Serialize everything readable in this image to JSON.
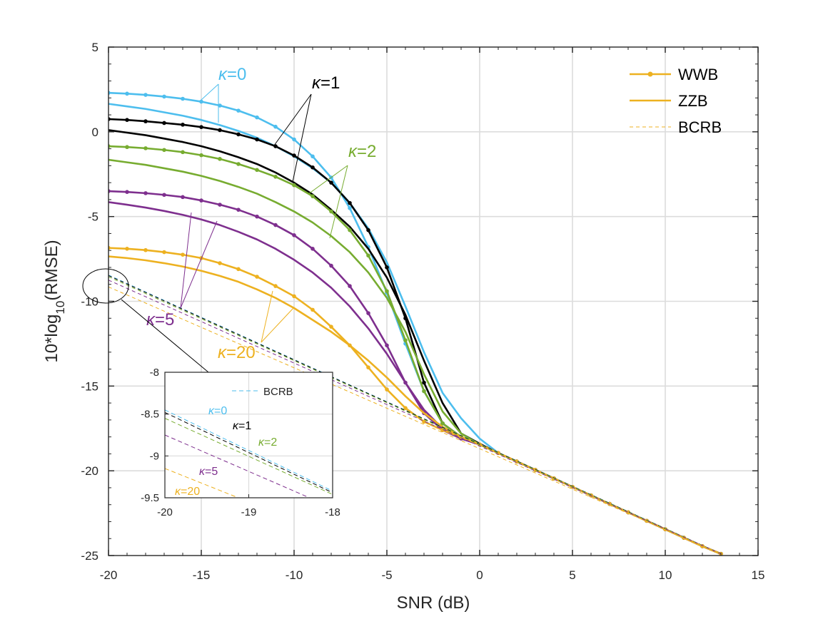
{
  "chart_data": [
    {
      "type": "line",
      "xlabel": "SNR (dB)",
      "ylabel_main": "10*log",
      "ylabel_sub": "10",
      "ylabel_tail": "(RMSE)",
      "xlim": [
        -20,
        15
      ],
      "ylim": [
        -25,
        5
      ],
      "xticks": [
        "-20",
        "-15",
        "-10",
        "-5",
        "0",
        "5",
        "10",
        "15"
      ],
      "yticks": [
        "5",
        "0",
        "-5",
        "-10",
        "-15",
        "-20",
        "-25"
      ],
      "grid": true,
      "legend_position": "top-right",
      "legend": [
        {
          "label": "WWB",
          "style": "line-with-dots"
        },
        {
          "label": "ZZB",
          "style": "solid"
        },
        {
          "label": "BCRB",
          "style": "dashed"
        }
      ],
      "colors": {
        "k0": "#4DBEEE",
        "k1": "#000000",
        "k2": "#77AC30",
        "k5": "#7E2F8E",
        "k20": "#EDB120"
      },
      "annotations": [
        {
          "id": "k0",
          "prefix": "κ",
          "text": "=0"
        },
        {
          "id": "k1",
          "prefix": "κ",
          "text": "=1"
        },
        {
          "id": "k2",
          "prefix": "κ",
          "text": "=2"
        },
        {
          "id": "k5",
          "prefix": "κ",
          "text": "=5"
        },
        {
          "id": "k20",
          "prefix": "κ",
          "text": "=20"
        }
      ],
      "series": [
        {
          "kappa": "k0",
          "kind": "WWB",
          "x": [
            -20,
            -19,
            -18,
            -17,
            -16,
            -15,
            -14,
            -13,
            -12,
            -11,
            -10,
            -9,
            -8,
            -7,
            -6,
            -5,
            -4,
            -3,
            -2,
            -1,
            0,
            1,
            2,
            3,
            4,
            5,
            6,
            7,
            8,
            9,
            10,
            11,
            12,
            13
          ],
          "y": [
            2.3,
            2.25,
            2.18,
            2.08,
            1.95,
            1.78,
            1.55,
            1.25,
            0.85,
            0.3,
            -0.45,
            -1.45,
            -2.7,
            -4.5,
            -6.8,
            -9.5,
            -12.5,
            -15.3,
            -17.2,
            -18.05,
            -18.45,
            -18.95,
            -19.45,
            -19.95,
            -20.45,
            -20.95,
            -21.45,
            -21.95,
            -22.45,
            -22.95,
            -23.45,
            -23.95,
            -24.45,
            -24.9
          ]
        },
        {
          "kappa": "k0",
          "kind": "ZZB",
          "x": [
            -20,
            -19,
            -18,
            -17,
            -16,
            -15,
            -14,
            -13,
            -12,
            -11,
            -10,
            -9,
            -8,
            -7,
            -6,
            -5,
            -4,
            -3,
            -2,
            -1,
            0,
            1,
            2,
            3,
            4,
            5,
            6,
            7,
            8,
            9,
            10,
            11,
            12,
            13
          ],
          "y": [
            1.65,
            1.5,
            1.35,
            1.15,
            0.95,
            0.7,
            0.4,
            0.05,
            -0.35,
            -0.85,
            -1.45,
            -2.15,
            -3.0,
            -4.2,
            -5.7,
            -7.7,
            -10.3,
            -13.0,
            -15.4,
            -16.9,
            -18.1,
            -18.95,
            -19.45,
            -19.95,
            -20.45,
            -20.95,
            -21.45,
            -21.95,
            -22.45,
            -22.95,
            -23.45,
            -23.95,
            -24.45,
            -24.9
          ]
        },
        {
          "kappa": "k1",
          "kind": "WWB",
          "x": [
            -20,
            -19,
            -18,
            -17,
            -16,
            -15,
            -14,
            -13,
            -12,
            -11,
            -10,
            -9,
            -8,
            -7,
            -6,
            -5,
            -4,
            -3,
            -2,
            -1,
            0,
            1,
            2,
            3,
            4,
            5,
            6,
            7,
            8,
            9,
            10,
            11,
            12,
            13
          ],
          "y": [
            0.75,
            0.7,
            0.62,
            0.52,
            0.42,
            0.28,
            0.1,
            -0.15,
            -0.45,
            -0.85,
            -1.4,
            -2.1,
            -3.0,
            -4.2,
            -5.8,
            -8.0,
            -11.0,
            -14.8,
            -17.2,
            -18.0,
            -18.45,
            -18.95,
            -19.45,
            -19.95,
            -20.45,
            -20.95,
            -21.45,
            -21.95,
            -22.45,
            -22.95,
            -23.45,
            -23.95,
            -24.45,
            -24.9
          ]
        },
        {
          "kappa": "k1",
          "kind": "ZZB",
          "x": [
            -20,
            -19,
            -18,
            -17,
            -16,
            -15,
            -14,
            -13,
            -12,
            -11,
            -10,
            -9,
            -8,
            -7,
            -6,
            -5,
            -4,
            -3,
            -2,
            -1,
            0,
            1,
            2,
            3,
            4,
            5,
            6,
            7,
            8,
            9,
            10,
            11,
            12,
            13
          ],
          "y": [
            0.1,
            -0.05,
            -0.2,
            -0.4,
            -0.6,
            -0.85,
            -1.15,
            -1.5,
            -1.9,
            -2.4,
            -3.0,
            -3.7,
            -4.6,
            -5.6,
            -6.9,
            -8.6,
            -10.8,
            -13.5,
            -16.0,
            -17.8,
            -18.4,
            -18.95,
            -19.45,
            -19.95,
            -20.45,
            -20.95,
            -21.45,
            -21.95,
            -22.45,
            -22.95,
            -23.45,
            -23.95,
            -24.45,
            -24.9
          ]
        },
        {
          "kappa": "k2",
          "kind": "WWB",
          "x": [
            -20,
            -19,
            -18,
            -17,
            -16,
            -15,
            -14,
            -13,
            -12,
            -11,
            -10,
            -9,
            -8,
            -7,
            -6,
            -5,
            -4,
            -3,
            -2,
            -1,
            0,
            1,
            2,
            3,
            4,
            5,
            6,
            7,
            8,
            9,
            10,
            11,
            12,
            13
          ],
          "y": [
            -0.85,
            -0.9,
            -0.97,
            -1.07,
            -1.2,
            -1.38,
            -1.6,
            -1.9,
            -2.25,
            -2.65,
            -3.15,
            -3.8,
            -4.7,
            -5.8,
            -7.3,
            -9.4,
            -12.3,
            -15.3,
            -17.2,
            -18.0,
            -18.45,
            -18.95,
            -19.45,
            -19.95,
            -20.45,
            -20.95,
            -21.45,
            -21.95,
            -22.45,
            -22.95,
            -23.45,
            -23.95,
            -24.45,
            -24.9
          ]
        },
        {
          "kappa": "k2",
          "kind": "ZZB",
          "x": [
            -20,
            -19,
            -18,
            -17,
            -16,
            -15,
            -14,
            -13,
            -12,
            -11,
            -10,
            -9,
            -8,
            -7,
            -6,
            -5,
            -4,
            -3,
            -2,
            -1,
            0,
            1,
            2,
            3,
            4,
            5,
            6,
            7,
            8,
            9,
            10,
            11,
            12,
            13
          ],
          "y": [
            -1.65,
            -1.8,
            -1.95,
            -2.15,
            -2.35,
            -2.6,
            -2.9,
            -3.25,
            -3.65,
            -4.15,
            -4.7,
            -5.35,
            -6.15,
            -7.1,
            -8.3,
            -9.8,
            -11.8,
            -14.3,
            -16.5,
            -17.8,
            -18.45,
            -18.95,
            -19.45,
            -19.95,
            -20.45,
            -20.95,
            -21.45,
            -21.95,
            -22.45,
            -22.95,
            -23.45,
            -23.95,
            -24.45,
            -24.9
          ]
        },
        {
          "kappa": "k5",
          "kind": "WWB",
          "x": [
            -20,
            -19,
            -18,
            -17,
            -16,
            -15,
            -14,
            -13,
            -12,
            -11,
            -10,
            -9,
            -8,
            -7,
            -6,
            -5,
            -4,
            -3,
            -2,
            -1,
            0,
            1,
            2,
            3,
            4,
            5,
            6,
            7,
            8,
            9,
            10,
            11,
            12,
            13
          ],
          "y": [
            -3.5,
            -3.55,
            -3.62,
            -3.72,
            -3.85,
            -4.05,
            -4.3,
            -4.6,
            -5.0,
            -5.5,
            -6.1,
            -6.9,
            -7.9,
            -9.1,
            -10.7,
            -12.6,
            -14.8,
            -16.6,
            -17.6,
            -18.1,
            -18.45,
            -18.95,
            -19.45,
            -19.95,
            -20.45,
            -20.95,
            -21.45,
            -21.95,
            -22.45,
            -22.95,
            -23.45,
            -23.95,
            -24.45,
            -24.9
          ]
        },
        {
          "kappa": "k5",
          "kind": "ZZB",
          "x": [
            -20,
            -19,
            -18,
            -17,
            -16,
            -15,
            -14,
            -13,
            -12,
            -11,
            -10,
            -9,
            -8,
            -7,
            -6,
            -5,
            -4,
            -3,
            -2,
            -1,
            0,
            1,
            2,
            3,
            4,
            5,
            6,
            7,
            8,
            9,
            10,
            11,
            12,
            13
          ],
          "y": [
            -4.15,
            -4.3,
            -4.47,
            -4.67,
            -4.9,
            -5.17,
            -5.5,
            -5.9,
            -6.35,
            -6.9,
            -7.55,
            -8.3,
            -9.2,
            -10.3,
            -11.6,
            -13.1,
            -14.8,
            -16.4,
            -17.5,
            -18.1,
            -18.45,
            -18.95,
            -19.45,
            -19.95,
            -20.45,
            -20.95,
            -21.45,
            -21.95,
            -22.45,
            -22.95,
            -23.45,
            -23.95,
            -24.45,
            -24.9
          ]
        },
        {
          "kappa": "k20",
          "kind": "WWB",
          "x": [
            -20,
            -19,
            -18,
            -17,
            -16,
            -15,
            -14,
            -13,
            -12,
            -11,
            -10,
            -9,
            -8,
            -7,
            -6,
            -5,
            -4,
            -3,
            -2,
            -1,
            0,
            1,
            2,
            3,
            4,
            5,
            6,
            7,
            8,
            9,
            10,
            11,
            12,
            13
          ],
          "y": [
            -6.85,
            -6.9,
            -6.98,
            -7.1,
            -7.25,
            -7.45,
            -7.75,
            -8.1,
            -8.55,
            -9.1,
            -9.7,
            -10.5,
            -11.5,
            -12.6,
            -13.9,
            -15.2,
            -16.3,
            -17.1,
            -17.6,
            -18.0,
            -18.45,
            -18.95,
            -19.45,
            -19.95,
            -20.45,
            -20.95,
            -21.45,
            -21.95,
            -22.45,
            -22.95,
            -23.45,
            -23.95,
            -24.45,
            -24.9
          ]
        },
        {
          "kappa": "k20",
          "kind": "ZZB",
          "x": [
            -20,
            -19,
            -18,
            -17,
            -16,
            -15,
            -14,
            -13,
            -12,
            -11,
            -10,
            -9,
            -8,
            -7,
            -6,
            -5,
            -4,
            -3,
            -2,
            -1,
            0,
            1,
            2,
            3,
            4,
            5,
            6,
            7,
            8,
            9,
            10,
            11,
            12,
            13
          ],
          "y": [
            -7.35,
            -7.45,
            -7.58,
            -7.75,
            -7.95,
            -8.2,
            -8.5,
            -8.85,
            -9.3,
            -9.8,
            -10.4,
            -11.1,
            -11.8,
            -12.6,
            -13.5,
            -14.5,
            -15.6,
            -16.6,
            -17.4,
            -18.0,
            -18.45,
            -18.95,
            -19.45,
            -19.95,
            -20.45,
            -20.95,
            -21.45,
            -21.95,
            -22.45,
            -22.95,
            -23.45,
            -23.95,
            -24.45,
            -24.9
          ]
        },
        {
          "kappa": "k0",
          "kind": "BCRB",
          "x": [
            -20,
            13
          ],
          "y": [
            -8.45,
            -24.9
          ]
        },
        {
          "kappa": "k1",
          "kind": "BCRB",
          "x": [
            -20,
            13
          ],
          "y": [
            -8.48,
            -24.9
          ]
        },
        {
          "kappa": "k2",
          "kind": "BCRB",
          "x": [
            -20,
            13
          ],
          "y": [
            -8.55,
            -24.9
          ]
        },
        {
          "kappa": "k5",
          "kind": "BCRB",
          "x": [
            -20,
            13
          ],
          "y": [
            -8.75,
            -24.9
          ]
        },
        {
          "kappa": "k20",
          "kind": "BCRB",
          "x": [
            -20,
            13
          ],
          "y": [
            -9.15,
            -24.9
          ]
        }
      ]
    },
    {
      "type": "line",
      "inset": true,
      "xlim": [
        -20,
        -18
      ],
      "ylim": [
        -9.5,
        -8
      ],
      "xticks": [
        "-20",
        "-19",
        "-18"
      ],
      "yticks": [
        "-8",
        "-8.5",
        "-9",
        "-9.5"
      ],
      "grid": true,
      "legend_position": "top-right",
      "legend": [
        {
          "label": "BCRB",
          "style": "dashed"
        }
      ],
      "annotations": [
        {
          "id": "k0",
          "prefix": "κ",
          "text": "=0"
        },
        {
          "id": "k1",
          "prefix": "κ",
          "text": "=1"
        },
        {
          "id": "k2",
          "prefix": "κ",
          "text": "=2"
        },
        {
          "id": "k5",
          "prefix": "κ",
          "text": "=5"
        },
        {
          "id": "k20",
          "prefix": "κ",
          "text": "=20"
        }
      ],
      "series": [
        {
          "kappa": "k0",
          "kind": "BCRB",
          "x": [
            -20,
            -18
          ],
          "y": [
            -8.45,
            -9.42
          ]
        },
        {
          "kappa": "k1",
          "kind": "BCRB",
          "x": [
            -20,
            -18
          ],
          "y": [
            -8.48,
            -9.44
          ]
        },
        {
          "kappa": "k2",
          "kind": "BCRB",
          "x": [
            -20,
            -18
          ],
          "y": [
            -8.55,
            -9.46
          ]
        },
        {
          "kappa": "k5",
          "kind": "BCRB",
          "x": [
            -20,
            -18
          ],
          "y": [
            -8.75,
            -9.62
          ]
        },
        {
          "kappa": "k20",
          "kind": "BCRB",
          "x": [
            -20,
            -18
          ],
          "y": [
            -9.15,
            -9.95
          ]
        }
      ]
    }
  ]
}
